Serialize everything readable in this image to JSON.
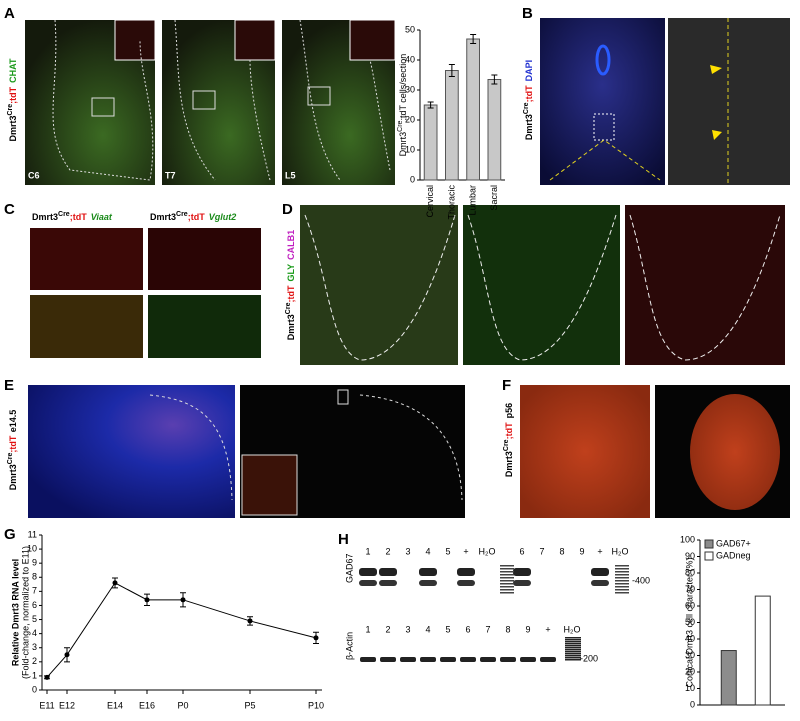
{
  "panel_labels": [
    "A",
    "B",
    "C",
    "D",
    "E",
    "F",
    "G",
    "H"
  ],
  "genotype": {
    "gene": "Dmrt3",
    "sup": "Cre",
    "tag": ";tdT"
  },
  "panel_a": {
    "marker": "CHAT",
    "sections": [
      "C6",
      "T7",
      "L5"
    ]
  },
  "panel_b": {
    "marker": "DAPI"
  },
  "panel_c": {
    "markers": [
      "Viaat",
      "Vglut2"
    ]
  },
  "panel_d": {
    "markers": [
      "GLY",
      "CALB1"
    ]
  },
  "panel_e": {
    "stage": "e14.5"
  },
  "panel_f": {
    "stage": "p56"
  },
  "gel": {
    "target": "GAD67",
    "control": "β-Actin",
    "top_lanes": [
      "1",
      "2",
      "3",
      "4",
      "5",
      "+",
      "H₂O",
      "6",
      "7",
      "8",
      "9",
      "+",
      "H₂O"
    ],
    "bottom_lanes": [
      "1",
      "2",
      "3",
      "4",
      "5",
      "6",
      "7",
      "8",
      "9",
      "+",
      "H₂O"
    ],
    "marker_top": "-400",
    "marker_bottom": "-200"
  },
  "chart_data": [
    {
      "type": "bar",
      "y_label": {
        "gene": "Dmrt3",
        "sup": "Cre",
        "rest": ";tdT cells/section"
      },
      "categories": [
        "Cervical",
        "Thoracic",
        "Lumbar",
        "Sacral"
      ],
      "values": [
        25,
        36.5,
        47,
        33.5
      ],
      "errors": [
        1,
        2,
        1.5,
        1.5
      ],
      "color": "#c8c8c8",
      "ylim": [
        0,
        50
      ],
      "yticks": [
        0,
        10,
        20,
        30,
        40,
        50
      ]
    },
    {
      "type": "line",
      "y_label": "Relative Dmrt3 RNA level",
      "y_sublabel": "(Fold-change, normalized to E11)",
      "categories": [
        "E11",
        "E12",
        "E14",
        "E16",
        "P0",
        "P5",
        "P10"
      ],
      "values": [
        0.9,
        2.5,
        7.6,
        6.4,
        6.4,
        4.9,
        3.7
      ],
      "errors": [
        0.1,
        0.5,
        0.35,
        0.4,
        0.5,
        0.3,
        0.4
      ],
      "color": "#000000",
      "ylim": [
        0,
        11
      ],
      "yticks": [
        0,
        1,
        2,
        3,
        4,
        5,
        6,
        7,
        8,
        9,
        10,
        11
      ]
    },
    {
      "type": "bar",
      "y_label": "Cortical Dmrt3 cell character (%)",
      "categories": [
        null
      ],
      "series": [
        {
          "name": "GAD67+",
          "color": "#8c8c8c",
          "values": [
            33
          ]
        },
        {
          "name": "GADneg",
          "color": "#ffffff",
          "values": [
            66
          ]
        }
      ],
      "ylim": [
        0,
        100
      ],
      "yticks": [
        0,
        10,
        20,
        30,
        40,
        50,
        60,
        70,
        80,
        90,
        100
      ],
      "legend": "upper right"
    }
  ]
}
